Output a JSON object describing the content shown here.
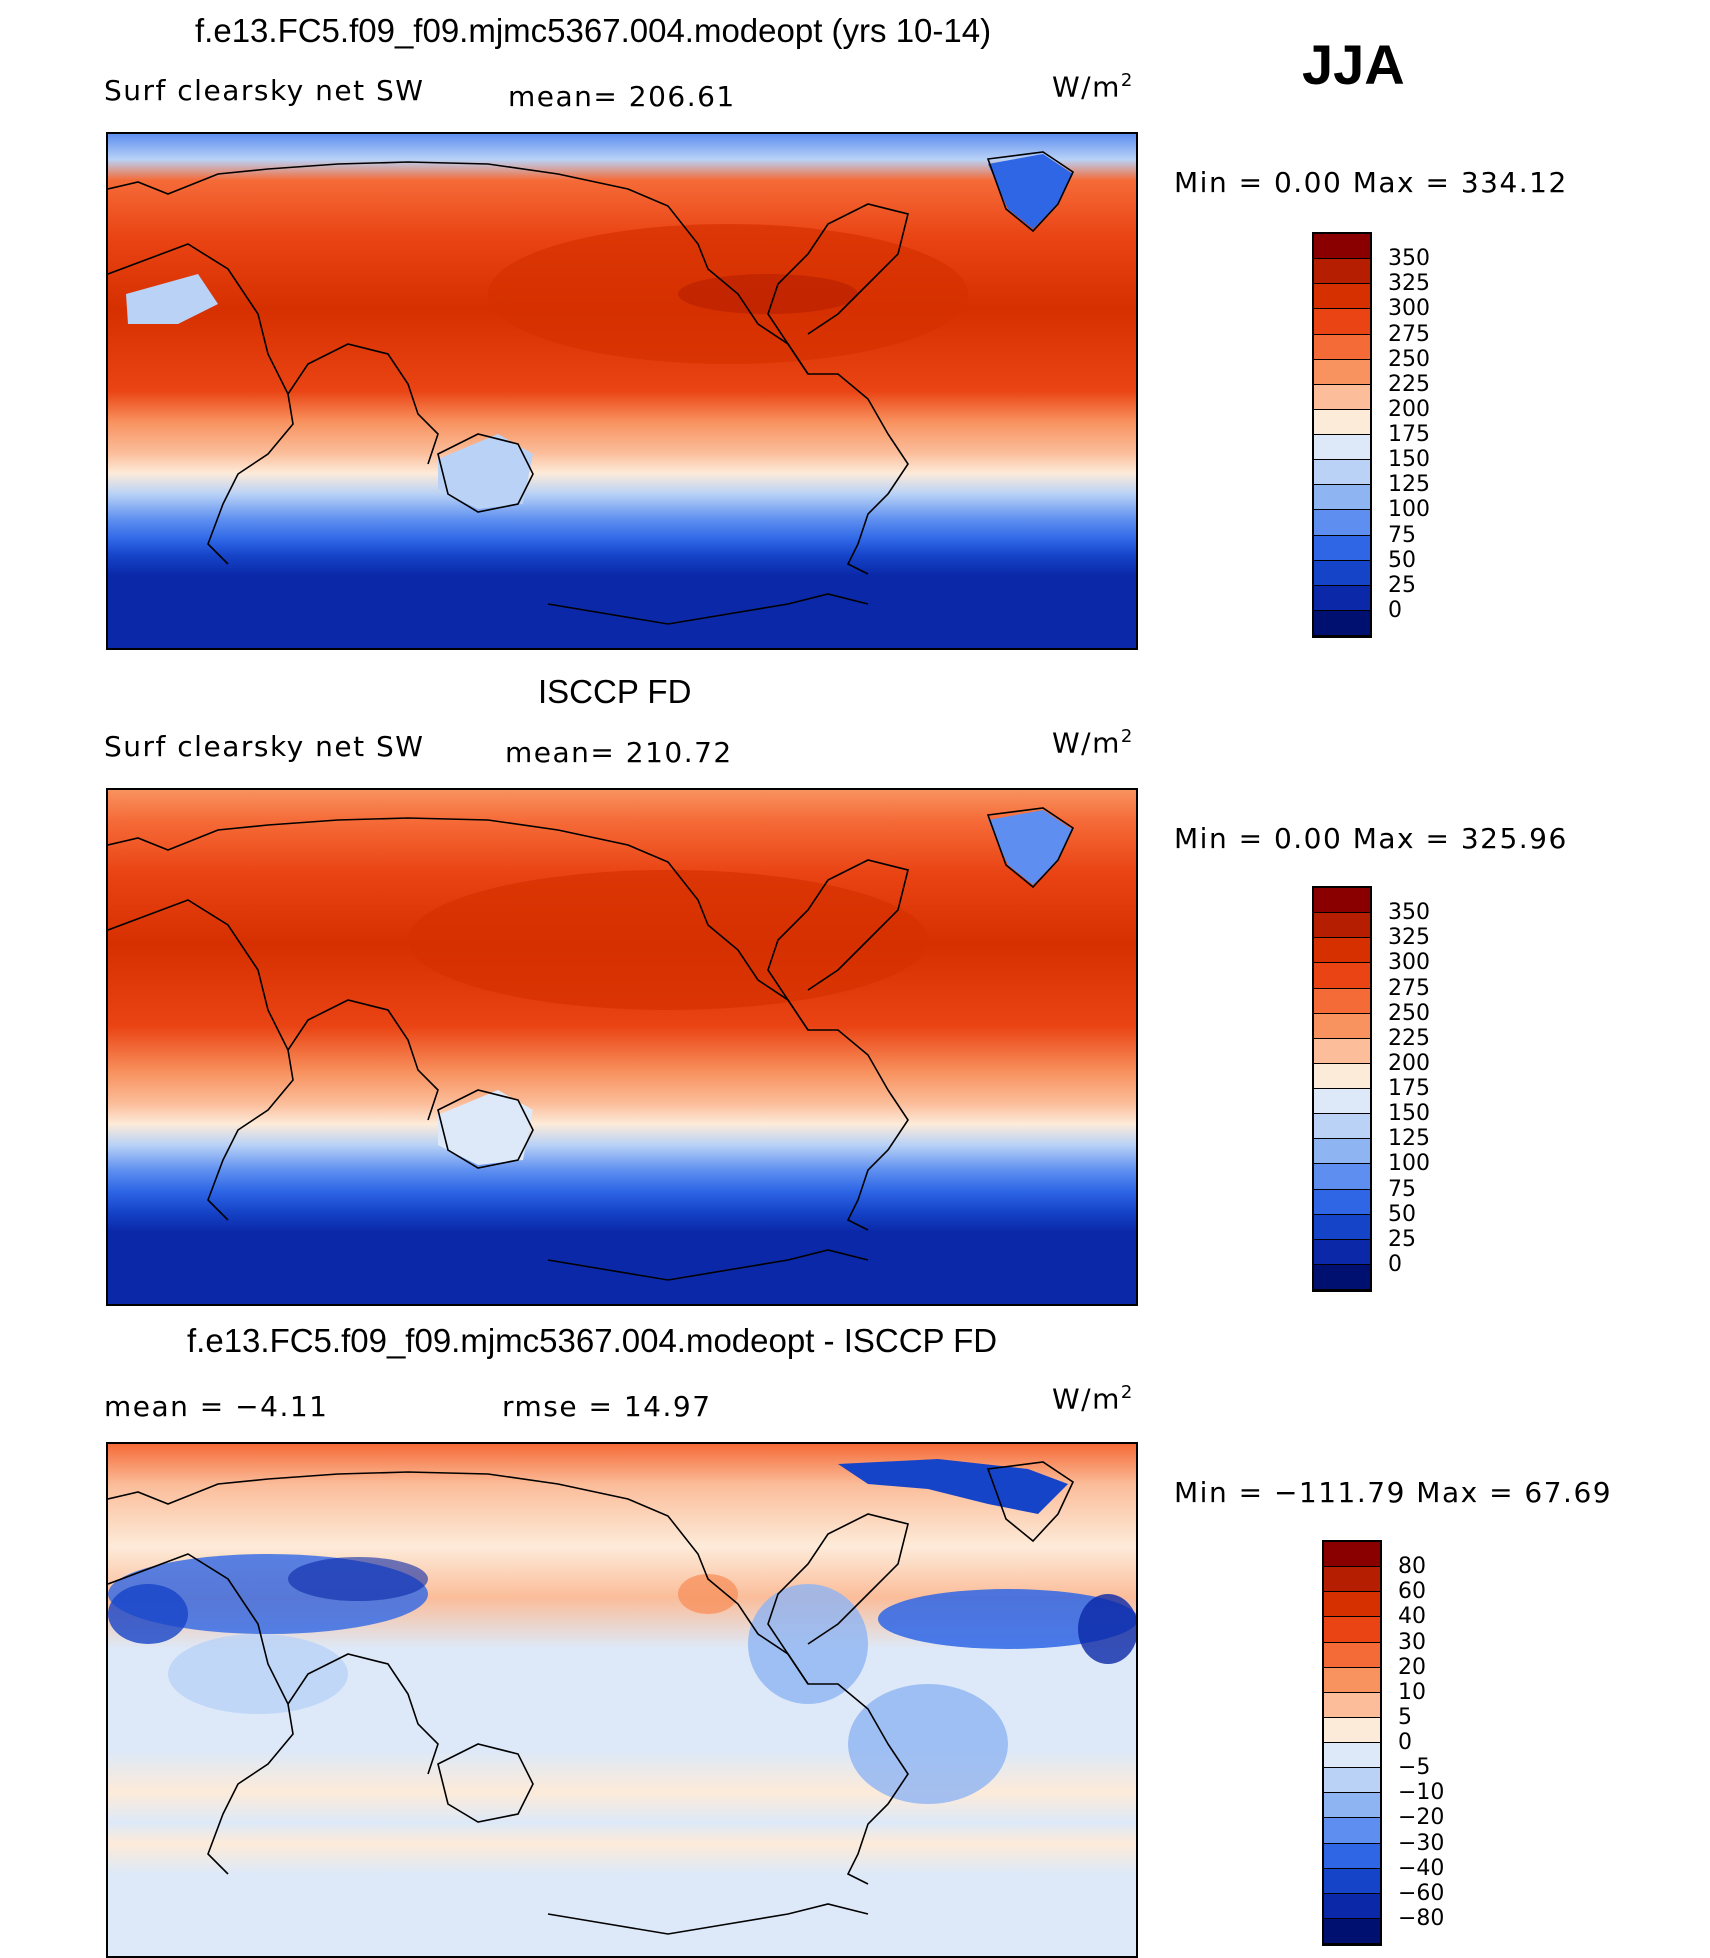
{
  "season": "JJA",
  "panels": [
    {
      "title": "f.e13.FC5.f09_f09.mjmc5367.004.modeopt (yrs 10-14)",
      "left_label": "Surf clearsky net SW",
      "center_label": "mean= 206.61",
      "units": "W/m",
      "units_exp": "2",
      "minmax": "Min =    0.00 Max = 334.12",
      "colorbar": {
        "labels": [
          "350",
          "325",
          "300",
          "275",
          "250",
          "225",
          "200",
          "175",
          "150",
          "125",
          "100",
          "75",
          "50",
          "25",
          "0"
        ],
        "colors": [
          "#8a0000",
          "#b51e00",
          "#d63000",
          "#ea4414",
          "#f56b38",
          "#f8925f",
          "#fbbd9a",
          "#fdebd9",
          "#dde9f8",
          "#b9d2f6",
          "#8eb4f2",
          "#5e8ff0",
          "#2e66e6",
          "#1644c8",
          "#0a28a8",
          "#001070"
        ]
      }
    },
    {
      "title": "ISCCP FD",
      "left_label": "Surf clearsky net SW",
      "center_label": "mean= 210.72",
      "units": "W/m",
      "units_exp": "2",
      "minmax": "Min =    0.00 Max = 325.96",
      "colorbar": {
        "labels": [
          "350",
          "325",
          "300",
          "275",
          "250",
          "225",
          "200",
          "175",
          "150",
          "125",
          "100",
          "75",
          "50",
          "25",
          "0"
        ],
        "colors": [
          "#8a0000",
          "#b51e00",
          "#d63000",
          "#ea4414",
          "#f56b38",
          "#f8925f",
          "#fbbd9a",
          "#fdebd9",
          "#dde9f8",
          "#b9d2f6",
          "#8eb4f2",
          "#5e8ff0",
          "#2e66e6",
          "#1644c8",
          "#0a28a8",
          "#001070"
        ]
      }
    },
    {
      "title": "f.e13.FC5.f09_f09.mjmc5367.004.modeopt - ISCCP FD",
      "left_label": "mean =   −4.11",
      "center_label": "rmse =   14.97",
      "units": "W/m",
      "units_exp": "2",
      "minmax": "Min = −111.79 Max =   67.69",
      "colorbar": {
        "labels": [
          "80",
          "60",
          "40",
          "30",
          "20",
          "10",
          "5",
          "0",
          "−5",
          "−10",
          "−20",
          "−30",
          "−40",
          "−60",
          "−80"
        ],
        "colors": [
          "#8a0000",
          "#b51e00",
          "#d63000",
          "#ea4414",
          "#f56b38",
          "#f8925f",
          "#fbbd9a",
          "#fdebd9",
          "#dde9f8",
          "#b9d2f6",
          "#8eb4f2",
          "#5e8ff0",
          "#2e66e6",
          "#1644c8",
          "#0a28a8",
          "#001070"
        ]
      }
    }
  ]
}
